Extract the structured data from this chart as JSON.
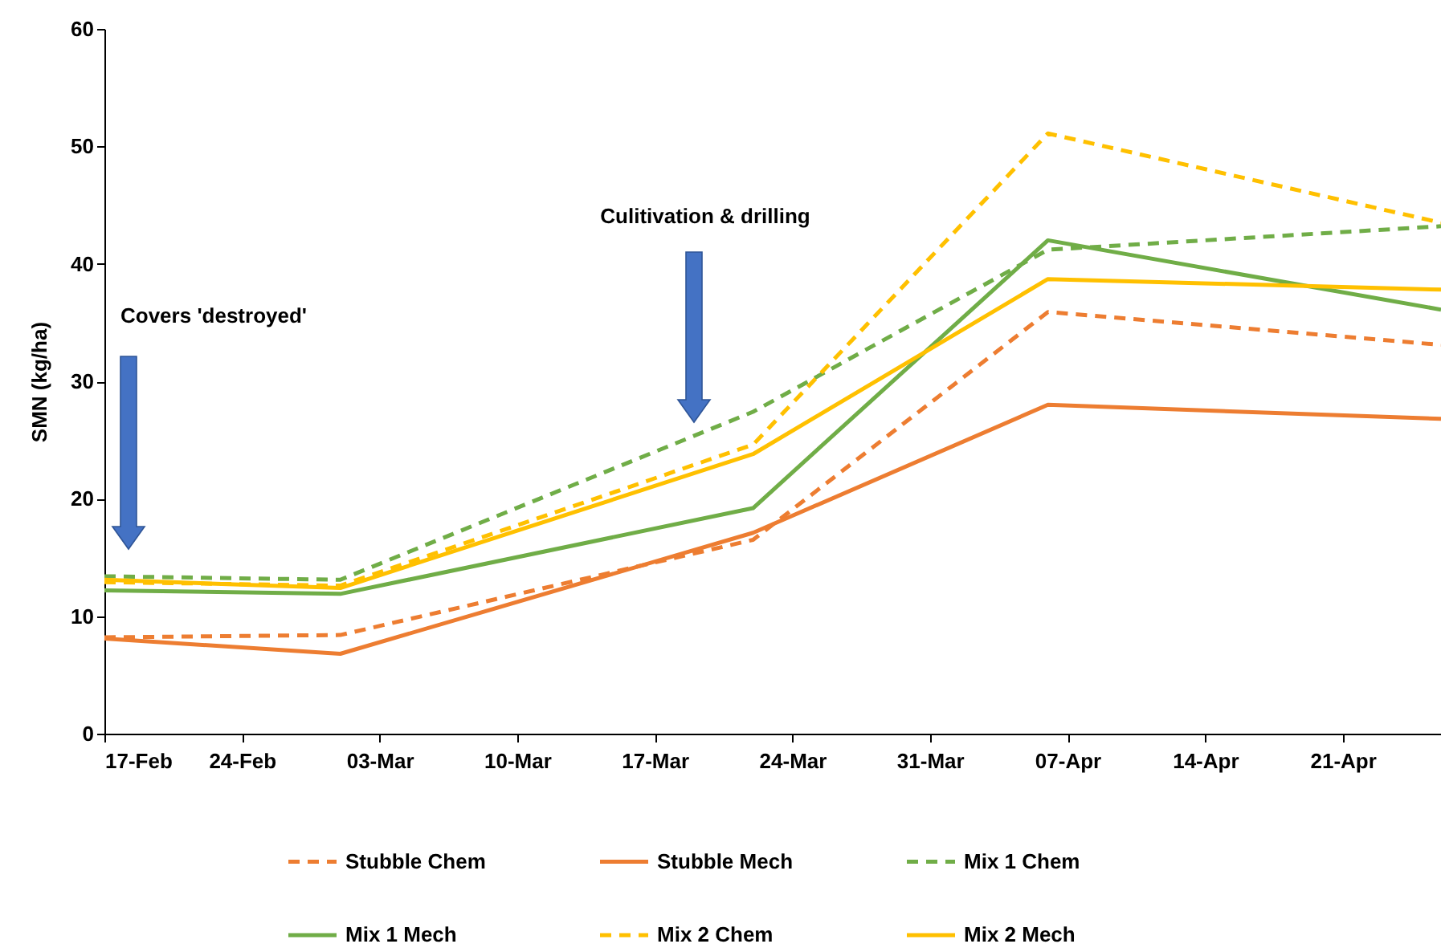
{
  "chart_data": {
    "type": "line",
    "ylabel": "SMN (kg/ha)",
    "x": [
      "--02-17",
      "--03-01",
      "--03-22",
      "--04-06",
      "--04-26"
    ],
    "series": [
      {
        "name": "Stubble Chem",
        "color": "#ed7d31",
        "line_style": "dashed",
        "values": [
          8.2,
          8.4,
          16.5,
          35.9,
          33.1
        ]
      },
      {
        "name": "Stubble Mech",
        "color": "#ed7d31",
        "line_style": "solid",
        "values": [
          8.1,
          6.8,
          17.1,
          28.0,
          26.8
        ]
      },
      {
        "name": "Mix 1 Chem",
        "color": "#70ad47",
        "line_style": "dashed",
        "values": [
          13.4,
          13.1,
          27.4,
          41.2,
          43.2
        ]
      },
      {
        "name": "Mix 1 Mech",
        "color": "#70ad47",
        "line_style": "solid",
        "values": [
          12.2,
          11.9,
          19.2,
          42.0,
          36.1
        ]
      },
      {
        "name": "Mix 2 Chem",
        "color": "#ffc000",
        "line_style": "dashed",
        "values": [
          12.9,
          12.6,
          24.6,
          51.1,
          43.5
        ]
      },
      {
        "name": "Mix 2 Mech",
        "color": "#ffc000",
        "line_style": "solid",
        "values": [
          13.1,
          12.4,
          23.8,
          38.7,
          37.8
        ]
      }
    ],
    "xlim": [
      "--02-17",
      "--04-26"
    ],
    "xticks": [
      {
        "value": "--02-17",
        "label": "17-Feb"
      },
      {
        "value": "--02-24",
        "label": "24-Feb"
      },
      {
        "value": "--03-03",
        "label": "03-Mar"
      },
      {
        "value": "--03-10",
        "label": "10-Mar"
      },
      {
        "value": "--03-17",
        "label": "17-Mar"
      },
      {
        "value": "--03-24",
        "label": "24-Mar"
      },
      {
        "value": "--03-31",
        "label": "31-Mar"
      },
      {
        "value": "--04-07",
        "label": "07-Apr"
      },
      {
        "value": "--04-14",
        "label": "14-Apr"
      },
      {
        "value": "--04-21",
        "label": "21-Apr"
      }
    ],
    "ylim": [
      0,
      60
    ],
    "yticks": [
      0,
      10,
      20,
      30,
      40,
      50,
      60
    ],
    "grid": false,
    "legend": "bottom",
    "marker": "none",
    "annotations": [
      "Covers 'destroyed'",
      "Culitivation & drilling"
    ]
  }
}
